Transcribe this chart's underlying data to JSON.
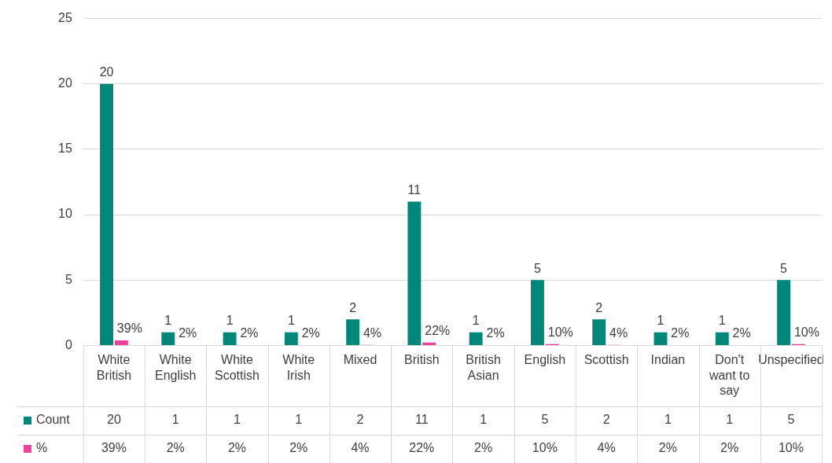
{
  "chart_data": {
    "type": "bar",
    "categories": [
      "White British",
      "White English",
      "White Scottish",
      "White Irish",
      "Mixed",
      "British",
      "British Asian",
      "English",
      "Scottish",
      "Indian",
      "Don't want to say",
      "Unspecified"
    ],
    "series": [
      {
        "name": "Count",
        "color": "#00877a",
        "values": [
          20,
          1,
          1,
          1,
          2,
          11,
          1,
          5,
          2,
          1,
          1,
          5
        ],
        "value_labels": [
          "20",
          "1",
          "1",
          "1",
          "2",
          "11",
          "1",
          "5",
          "2",
          "1",
          "1",
          "5"
        ]
      },
      {
        "name": "%",
        "color": "#e8439a",
        "values": [
          0.39,
          0.02,
          0.02,
          0.02,
          0.04,
          0.22,
          0.02,
          0.1,
          0.04,
          0.02,
          0.02,
          0.1
        ],
        "value_labels": [
          "39%",
          "2%",
          "2%",
          "2%",
          "4%",
          "22%",
          "2%",
          "10%",
          "4%",
          "2%",
          "2%",
          "10%"
        ]
      }
    ],
    "ylim": [
      0,
      25
    ],
    "yticks": [
      0,
      5,
      10,
      15,
      20,
      25
    ],
    "grid": "y",
    "legend": "bottom"
  }
}
